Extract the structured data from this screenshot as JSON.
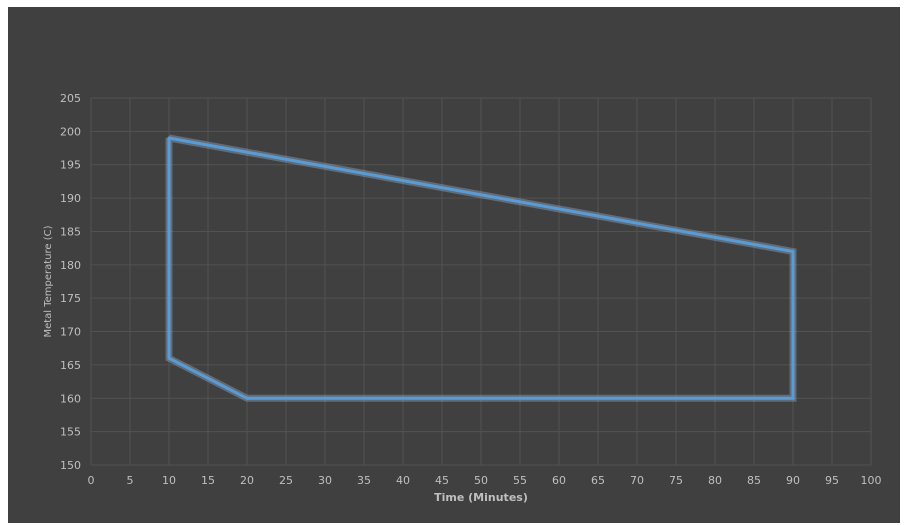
{
  "chart_data": {
    "type": "line",
    "title": "",
    "xlabel": "Time (Minutes)",
    "ylabel": "Metal Temperature (C)",
    "xlim": [
      0,
      100
    ],
    "ylim": [
      150,
      205
    ],
    "xticks": [
      0,
      5,
      10,
      15,
      20,
      25,
      30,
      35,
      40,
      45,
      50,
      55,
      60,
      65,
      70,
      75,
      80,
      85,
      90,
      95,
      100
    ],
    "yticks": [
      150,
      155,
      160,
      165,
      170,
      175,
      180,
      185,
      190,
      195,
      200,
      205
    ],
    "grid": true,
    "legend": "none",
    "series": [
      {
        "color": "#5b9bd5",
        "x": [
          10,
          90,
          90,
          20,
          10,
          10
        ],
        "y": [
          199,
          182,
          160,
          160,
          166,
          199
        ]
      }
    ]
  },
  "colors": {
    "background": "#404040",
    "grid": "#525252",
    "text": "#bfbfbf",
    "series": "#5b9bd5",
    "glow": "#9dc3e6"
  }
}
